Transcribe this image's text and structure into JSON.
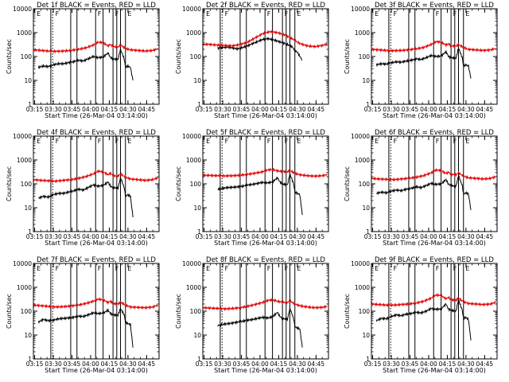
{
  "colors": {
    "events": "#000000",
    "lld": "#e00000",
    "frame": "#000000",
    "background": "#ffffff"
  },
  "x_tick_labels": [
    "03:15",
    "03:30",
    "03:45",
    "04:00",
    "04:15",
    "04:30",
    "04:45"
  ],
  "y_tick_labels": [
    "1",
    "10",
    "100",
    "1000",
    "10000"
  ],
  "ylabel": "Counts/sec",
  "xlabel": "Start Time (26-Mar-04 03:14:00)",
  "chart_data": [
    {
      "type": "line",
      "title": "Det 1f BLACK = Events, RED = LLD",
      "x_unit": "minutes after 03:14:00",
      "xlim": [
        0,
        101
      ],
      "ylim": [
        1,
        10000
      ],
      "yscale": "log",
      "series": [
        {
          "name": "Events",
          "color": "#000000",
          "x": [
            4,
            8,
            12,
            16,
            20,
            24,
            28,
            32,
            36,
            40,
            44,
            48,
            52,
            56,
            60,
            62,
            64,
            68,
            70,
            73,
            74,
            76,
            78,
            80
          ],
          "y": [
            35,
            40,
            38,
            45,
            50,
            50,
            55,
            60,
            70,
            65,
            80,
            100,
            90,
            95,
            140,
            90,
            80,
            75,
            200,
            80,
            35,
            40,
            35,
            10
          ]
        },
        {
          "name": "LLD",
          "color": "#e00000",
          "x": [
            0,
            6,
            12,
            18,
            24,
            30,
            36,
            42,
            48,
            52,
            56,
            60,
            62,
            64,
            68,
            70,
            74,
            78,
            84,
            90,
            96,
            100
          ],
          "y": [
            190,
            180,
            170,
            165,
            170,
            180,
            200,
            230,
            300,
            400,
            380,
            280,
            320,
            260,
            250,
            300,
            220,
            190,
            180,
            170,
            180,
            210
          ]
        }
      ]
    },
    {
      "type": "line",
      "title": "Det 2f BLACK = Events, RED = LLD",
      "x_unit": "minutes after 03:14:00",
      "xlim": [
        0,
        101
      ],
      "ylim": [
        1,
        10000
      ],
      "yscale": "log",
      "series": [
        {
          "name": "Events",
          "color": "#000000",
          "x": [
            12,
            16,
            20,
            24,
            28,
            32,
            36,
            40,
            44,
            48,
            52,
            56,
            60,
            64,
            68,
            72,
            74,
            76,
            80
          ],
          "y": [
            220,
            240,
            250,
            230,
            210,
            240,
            280,
            350,
            420,
            520,
            560,
            520,
            440,
            380,
            320,
            250,
            180,
            150,
            70
          ]
        },
        {
          "name": "LLD",
          "color": "#e00000",
          "x": [
            0,
            6,
            12,
            18,
            24,
            30,
            36,
            42,
            48,
            54,
            60,
            66,
            72,
            78,
            84,
            90,
            96,
            100
          ],
          "y": [
            330,
            320,
            300,
            290,
            280,
            320,
            400,
            600,
            900,
            1100,
            1000,
            800,
            550,
            350,
            280,
            260,
            290,
            340
          ]
        }
      ]
    },
    {
      "type": "line",
      "title": "Det 3f BLACK = Events, RED = LLD",
      "x_unit": "minutes after 03:14:00",
      "xlim": [
        0,
        101
      ],
      "ylim": [
        1,
        10000
      ],
      "yscale": "log",
      "series": [
        {
          "name": "Events",
          "color": "#000000",
          "x": [
            4,
            8,
            12,
            16,
            20,
            24,
            28,
            32,
            36,
            40,
            44,
            48,
            52,
            56,
            60,
            62,
            64,
            68,
            70,
            73,
            74,
            76,
            78,
            80
          ],
          "y": [
            45,
            50,
            48,
            55,
            60,
            58,
            65,
            70,
            80,
            75,
            90,
            110,
            100,
            105,
            160,
            100,
            90,
            85,
            230,
            90,
            40,
            45,
            40,
            12
          ]
        },
        {
          "name": "LLD",
          "color": "#e00000",
          "x": [
            0,
            6,
            12,
            18,
            24,
            30,
            36,
            42,
            48,
            52,
            56,
            60,
            62,
            64,
            68,
            70,
            74,
            78,
            84,
            90,
            96,
            100
          ],
          "y": [
            200,
            190,
            180,
            175,
            180,
            190,
            210,
            240,
            320,
            420,
            400,
            300,
            340,
            280,
            270,
            320,
            240,
            200,
            190,
            180,
            190,
            220
          ]
        }
      ]
    },
    {
      "type": "line",
      "title": "Det 4f BLACK = Events, RED = LLD",
      "x_unit": "minutes after 03:14:00",
      "xlim": [
        0,
        101
      ],
      "ylim": [
        1,
        10000
      ],
      "yscale": "log",
      "series": [
        {
          "name": "Events",
          "color": "#000000",
          "x": [
            4,
            8,
            12,
            16,
            20,
            24,
            28,
            32,
            36,
            40,
            44,
            48,
            52,
            56,
            60,
            62,
            64,
            68,
            70,
            73,
            74,
            76,
            78,
            80
          ],
          "y": [
            25,
            30,
            28,
            35,
            40,
            40,
            45,
            50,
            60,
            55,
            70,
            90,
            80,
            85,
            120,
            80,
            70,
            65,
            180,
            70,
            30,
            35,
            30,
            4
          ]
        },
        {
          "name": "LLD",
          "color": "#e00000",
          "x": [
            0,
            6,
            12,
            18,
            24,
            30,
            36,
            42,
            48,
            52,
            56,
            60,
            62,
            64,
            68,
            70,
            74,
            78,
            84,
            90,
            96,
            100
          ],
          "y": [
            150,
            140,
            135,
            130,
            140,
            150,
            170,
            200,
            260,
            340,
            320,
            240,
            280,
            220,
            210,
            260,
            190,
            160,
            150,
            140,
            150,
            180
          ]
        }
      ]
    },
    {
      "type": "line",
      "title": "Det 5f BLACK = Events, RED = LLD",
      "x_unit": "minutes after 03:14:00",
      "xlim": [
        0,
        101
      ],
      "ylim": [
        1,
        10000
      ],
      "yscale": "log",
      "series": [
        {
          "name": "Events",
          "color": "#000000",
          "x": [
            12,
            16,
            20,
            24,
            28,
            32,
            36,
            40,
            44,
            48,
            52,
            56,
            60,
            62,
            64,
            68,
            70,
            73,
            74,
            76,
            78,
            80
          ],
          "y": [
            60,
            65,
            70,
            72,
            75,
            80,
            90,
            95,
            105,
            115,
            110,
            120,
            180,
            120,
            100,
            90,
            260,
            100,
            45,
            40,
            35,
            5
          ]
        },
        {
          "name": "LLD",
          "color": "#e00000",
          "x": [
            0,
            6,
            12,
            18,
            24,
            30,
            36,
            42,
            48,
            52,
            56,
            60,
            64,
            68,
            70,
            74,
            78,
            84,
            90,
            96,
            100
          ],
          "y": [
            230,
            225,
            220,
            215,
            220,
            230,
            250,
            280,
            320,
            380,
            400,
            350,
            330,
            320,
            360,
            280,
            240,
            220,
            210,
            220,
            240
          ]
        }
      ]
    },
    {
      "type": "line",
      "title": "Det 6f BLACK = Events, RED = LLD",
      "x_unit": "minutes after 03:14:00",
      "xlim": [
        0,
        101
      ],
      "ylim": [
        1,
        10000
      ],
      "yscale": "log",
      "series": [
        {
          "name": "Events",
          "color": "#000000",
          "x": [
            4,
            8,
            12,
            16,
            20,
            24,
            28,
            32,
            36,
            40,
            44,
            48,
            52,
            56,
            60,
            62,
            64,
            68,
            70,
            73,
            74,
            76,
            78,
            80
          ],
          "y": [
            40,
            45,
            42,
            50,
            55,
            52,
            60,
            65,
            75,
            70,
            85,
            105,
            95,
            100,
            150,
            95,
            85,
            80,
            220,
            85,
            38,
            42,
            38,
            8
          ]
        },
        {
          "name": "LLD",
          "color": "#e00000",
          "x": [
            0,
            6,
            12,
            18,
            24,
            30,
            36,
            42,
            48,
            52,
            56,
            60,
            62,
            64,
            68,
            70,
            74,
            78,
            84,
            90,
            96,
            100
          ],
          "y": [
            170,
            160,
            155,
            150,
            160,
            170,
            190,
            220,
            290,
            380,
            360,
            270,
            310,
            250,
            240,
            290,
            210,
            180,
            170,
            160,
            170,
            200
          ]
        }
      ]
    },
    {
      "type": "line",
      "title": "Det 7f BLACK = Events, RED = LLD",
      "x_unit": "minutes after 03:14:00",
      "xlim": [
        0,
        101
      ],
      "ylim": [
        1,
        10000
      ],
      "yscale": "log",
      "series": [
        {
          "name": "Events",
          "color": "#000000",
          "x": [
            4,
            8,
            12,
            16,
            20,
            24,
            28,
            32,
            36,
            40,
            44,
            48,
            52,
            56,
            60,
            62,
            64,
            68,
            70,
            73,
            74,
            76,
            78,
            80
          ],
          "y": [
            35,
            45,
            40,
            42,
            48,
            50,
            52,
            55,
            62,
            60,
            70,
            85,
            80,
            82,
            110,
            80,
            70,
            68,
            130,
            70,
            35,
            30,
            28,
            3
          ]
        },
        {
          "name": "LLD",
          "color": "#e00000",
          "x": [
            0,
            6,
            12,
            18,
            24,
            30,
            36,
            42,
            48,
            52,
            56,
            60,
            62,
            64,
            68,
            70,
            74,
            78,
            84,
            90,
            96,
            100
          ],
          "y": [
            180,
            170,
            160,
            150,
            155,
            165,
            180,
            210,
            260,
            320,
            300,
            230,
            260,
            210,
            200,
            240,
            180,
            150,
            145,
            140,
            150,
            180
          ]
        }
      ]
    },
    {
      "type": "line",
      "title": "Det 8f BLACK = Events, RED = LLD",
      "x_unit": "minutes after 03:14:00",
      "xlim": [
        0,
        101
      ],
      "ylim": [
        1,
        10000
      ],
      "yscale": "log",
      "series": [
        {
          "name": "Events",
          "color": "#000000",
          "x": [
            12,
            16,
            20,
            24,
            28,
            32,
            36,
            40,
            44,
            48,
            52,
            56,
            60,
            62,
            64,
            68,
            70,
            73,
            74,
            76,
            78,
            80
          ],
          "y": [
            25,
            28,
            30,
            32,
            35,
            38,
            42,
            45,
            50,
            55,
            52,
            58,
            90,
            60,
            50,
            45,
            130,
            50,
            22,
            20,
            18,
            3
          ]
        },
        {
          "name": "LLD",
          "color": "#e00000",
          "x": [
            0,
            6,
            12,
            18,
            24,
            30,
            36,
            42,
            48,
            52,
            56,
            60,
            64,
            68,
            70,
            74,
            78,
            84,
            90,
            96,
            100
          ],
          "y": [
            140,
            135,
            130,
            125,
            130,
            140,
            160,
            190,
            230,
            280,
            300,
            260,
            240,
            230,
            270,
            200,
            170,
            150,
            140,
            145,
            160
          ]
        }
      ]
    },
    {
      "type": "line",
      "title": "Det 9f BLACK = Events, RED = LLD",
      "x_unit": "minutes after 03:14:00",
      "xlim": [
        0,
        101
      ],
      "ylim": [
        1,
        10000
      ],
      "yscale": "log",
      "series": [
        {
          "name": "Events",
          "color": "#000000",
          "x": [
            4,
            8,
            12,
            16,
            20,
            24,
            28,
            32,
            36,
            40,
            44,
            48,
            52,
            56,
            60,
            62,
            64,
            68,
            70,
            73,
            74,
            76,
            78,
            80
          ],
          "y": [
            40,
            50,
            48,
            60,
            70,
            65,
            75,
            80,
            90,
            85,
            100,
            130,
            120,
            125,
            200,
            120,
            110,
            100,
            300,
            110,
            50,
            55,
            45,
            6
          ]
        },
        {
          "name": "LLD",
          "color": "#e00000",
          "x": [
            0,
            6,
            12,
            18,
            24,
            30,
            36,
            42,
            48,
            52,
            56,
            60,
            62,
            64,
            68,
            70,
            74,
            78,
            84,
            90,
            96,
            100
          ],
          "y": [
            200,
            190,
            180,
            180,
            190,
            200,
            220,
            260,
            350,
            480,
            450,
            330,
            380,
            300,
            290,
            350,
            250,
            210,
            200,
            190,
            200,
            240
          ]
        }
      ]
    }
  ]
}
